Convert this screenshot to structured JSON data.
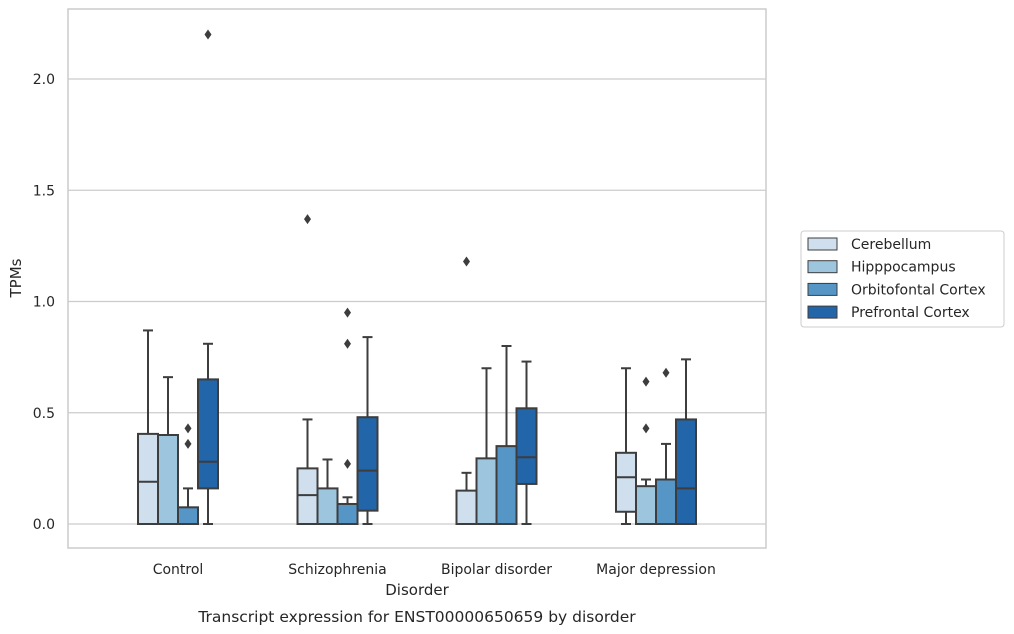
{
  "chart_data": {
    "type": "boxplot",
    "caption": "Transcript expression for ENST00000650659 by disorder",
    "xlabel": "Disorder",
    "ylabel": "TPMs",
    "ylim": [
      -0.1,
      2.32
    ],
    "yticks": [
      0.0,
      0.5,
      1.0,
      1.5,
      2.0
    ],
    "ytick_labels": [
      "0.0",
      "0.5",
      "1.0",
      "1.5",
      "2.0"
    ],
    "grid": "horizontal",
    "legend_position": "right",
    "categories": [
      "Control",
      "Schizophrenia",
      "Bipolar disorder",
      "Major depression"
    ],
    "series": [
      {
        "name": "Cerebellum",
        "color": "#cfdfee",
        "boxes": [
          {
            "whisker_low": 0.0,
            "q1": 0.0,
            "median": 0.19,
            "q3": 0.405,
            "whisker_high": 0.87,
            "outliers": []
          },
          {
            "whisker_low": 0.0,
            "q1": 0.0,
            "median": 0.13,
            "q3": 0.25,
            "whisker_high": 0.47,
            "outliers": [
              1.37
            ]
          },
          {
            "whisker_low": 0.0,
            "q1": 0.0,
            "median": 0.0,
            "q3": 0.15,
            "whisker_high": 0.23,
            "outliers": [
              1.18
            ]
          },
          {
            "whisker_low": 0.0,
            "q1": 0.055,
            "median": 0.21,
            "q3": 0.32,
            "whisker_high": 0.7,
            "outliers": []
          }
        ]
      },
      {
        "name": "Hipppocampus",
        "color": "#9dc5de",
        "boxes": [
          {
            "whisker_low": 0.0,
            "q1": 0.0,
            "median": 0.0,
            "q3": 0.4,
            "whisker_high": 0.66,
            "outliers": []
          },
          {
            "whisker_low": 0.0,
            "q1": 0.0,
            "median": 0.0,
            "q3": 0.16,
            "whisker_high": 0.29,
            "outliers": []
          },
          {
            "whisker_low": 0.0,
            "q1": 0.0,
            "median": 0.0,
            "q3": 0.295,
            "whisker_high": 0.7,
            "outliers": []
          },
          {
            "whisker_low": 0.0,
            "q1": 0.0,
            "median": 0.0,
            "q3": 0.17,
            "whisker_high": 0.2,
            "outliers": [
              0.43,
              0.64
            ]
          }
        ]
      },
      {
        "name": "Orbitofontal Cortex",
        "color": "#5596c7",
        "boxes": [
          {
            "whisker_low": 0.0,
            "q1": 0.0,
            "median": 0.0,
            "q3": 0.075,
            "whisker_high": 0.16,
            "outliers": [
              0.36,
              0.43
            ]
          },
          {
            "whisker_low": 0.0,
            "q1": 0.0,
            "median": 0.0,
            "q3": 0.09,
            "whisker_high": 0.12,
            "outliers": [
              0.27,
              0.81,
              0.95
            ]
          },
          {
            "whisker_low": 0.0,
            "q1": 0.0,
            "median": 0.0,
            "q3": 0.35,
            "whisker_high": 0.8,
            "outliers": []
          },
          {
            "whisker_low": 0.0,
            "q1": 0.0,
            "median": 0.0,
            "q3": 0.2,
            "whisker_high": 0.36,
            "outliers": [
              0.68
            ]
          }
        ]
      },
      {
        "name": "Prefrontal Cortex",
        "color": "#2265a8",
        "boxes": [
          {
            "whisker_low": 0.0,
            "q1": 0.16,
            "median": 0.28,
            "q3": 0.65,
            "whisker_high": 0.81,
            "outliers": [
              2.2
            ]
          },
          {
            "whisker_low": 0.0,
            "q1": 0.06,
            "median": 0.24,
            "q3": 0.48,
            "whisker_high": 0.84,
            "outliers": []
          },
          {
            "whisker_low": 0.0,
            "q1": 0.18,
            "median": 0.3,
            "q3": 0.52,
            "whisker_high": 0.73,
            "outliers": []
          },
          {
            "whisker_low": 0.0,
            "q1": 0.0,
            "median": 0.16,
            "q3": 0.47,
            "whisker_high": 0.74,
            "outliers": []
          }
        ]
      }
    ]
  }
}
